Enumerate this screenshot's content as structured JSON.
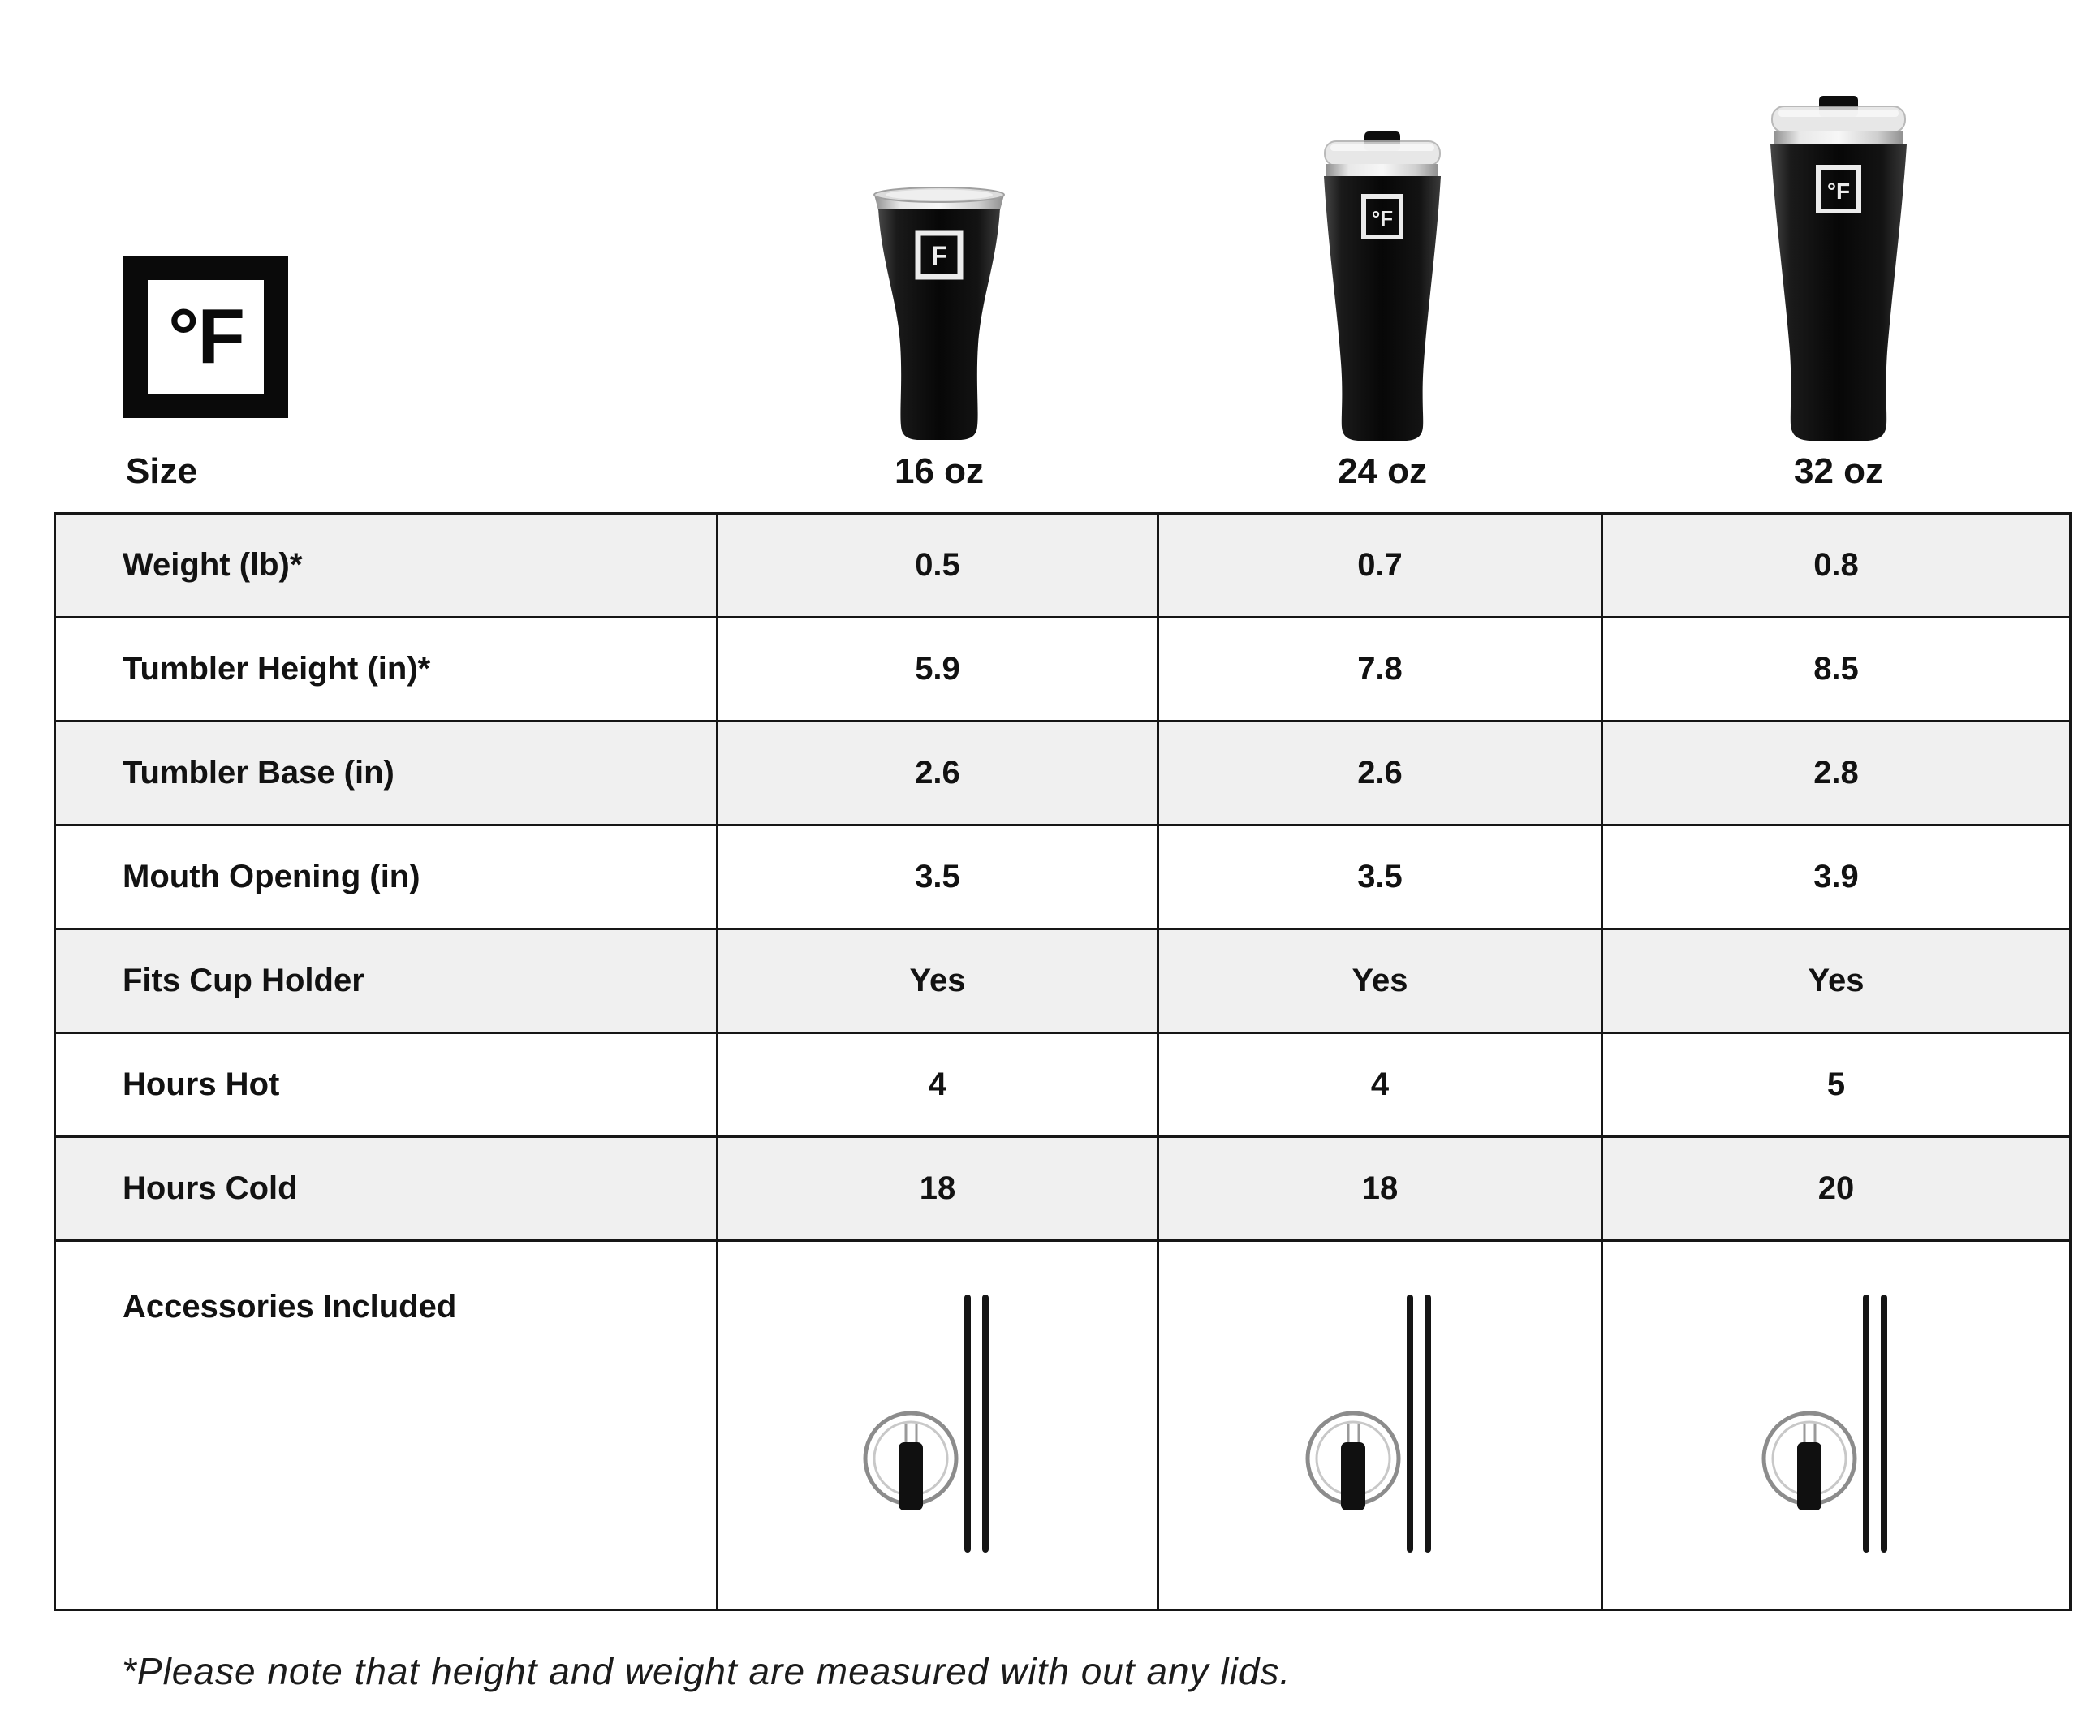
{
  "brand": {
    "degree": "°",
    "letter": "F",
    "logo_text": "°F"
  },
  "header": {
    "size_label": "Size",
    "columns": [
      {
        "label": "16 oz"
      },
      {
        "label": "24 oz"
      },
      {
        "label": "32 oz"
      }
    ]
  },
  "products": [
    {
      "size": "16 oz",
      "image": "black-tumbler-steel-rim-no-lid",
      "logo": "F"
    },
    {
      "size": "24 oz",
      "image": "black-tumbler-clear-lid",
      "logo": "°F"
    },
    {
      "size": "32 oz",
      "image": "black-tumbler-clear-lid",
      "logo": "°F"
    }
  ],
  "table": {
    "rows": [
      {
        "label": "Weight (lb)*",
        "type": "text",
        "values": [
          "0.5",
          "0.7",
          "0.8"
        ]
      },
      {
        "label": "Tumbler Height (in)*",
        "type": "text",
        "values": [
          "5.9",
          "7.8",
          "8.5"
        ]
      },
      {
        "label": "Tumbler Base (in)",
        "type": "text",
        "values": [
          "2.6",
          "2.6",
          "2.8"
        ]
      },
      {
        "label": "Mouth Opening (in)",
        "type": "text",
        "values": [
          "3.5",
          "3.5",
          "3.9"
        ]
      },
      {
        "label": "Fits Cup Holder",
        "type": "text",
        "values": [
          "Yes",
          "Yes",
          "Yes"
        ]
      },
      {
        "label": "Hours Hot",
        "type": "text",
        "values": [
          "4",
          "4",
          "5"
        ]
      },
      {
        "label": "Hours Cold",
        "type": "text",
        "values": [
          "18",
          "18",
          "20"
        ]
      },
      {
        "label": "Accessories Included",
        "type": "icons",
        "values": [
          "lid-and-2-straws-icon",
          "lid-and-2-straws-icon",
          "lid-and-2-straws-icon"
        ]
      }
    ]
  },
  "footnote": "*Please note that height and weight are measured with out any lids.",
  "colors": {
    "background": "#ffffff",
    "row_alt": "#f0f0f0",
    "border": "#161616",
    "text": "#121212",
    "tumbler_black": "#0d0d0d",
    "steel": "#cfcfcf"
  },
  "chart_data": {
    "type": "table",
    "title": "Tumbler Size Comparison",
    "columns": [
      "Size",
      "16 oz",
      "24 oz",
      "32 oz"
    ],
    "rows": [
      [
        "Weight (lb)*",
        "0.5",
        "0.7",
        "0.8"
      ],
      [
        "Tumbler Height (in)*",
        "5.9",
        "7.8",
        "8.5"
      ],
      [
        "Tumbler Base (in)",
        "2.6",
        "2.6",
        "2.8"
      ],
      [
        "Mouth Opening (in)",
        "3.5",
        "3.5",
        "3.9"
      ],
      [
        "Fits Cup Holder",
        "Yes",
        "Yes",
        "Yes"
      ],
      [
        "Hours Hot",
        "4",
        "4",
        "5"
      ],
      [
        "Hours Cold",
        "18",
        "18",
        "20"
      ],
      [
        "Accessories Included",
        "lid + 2 straws",
        "lid + 2 straws",
        "lid + 2 straws"
      ]
    ],
    "footnote": "*Please note that height and weight are measured with out any lids."
  }
}
